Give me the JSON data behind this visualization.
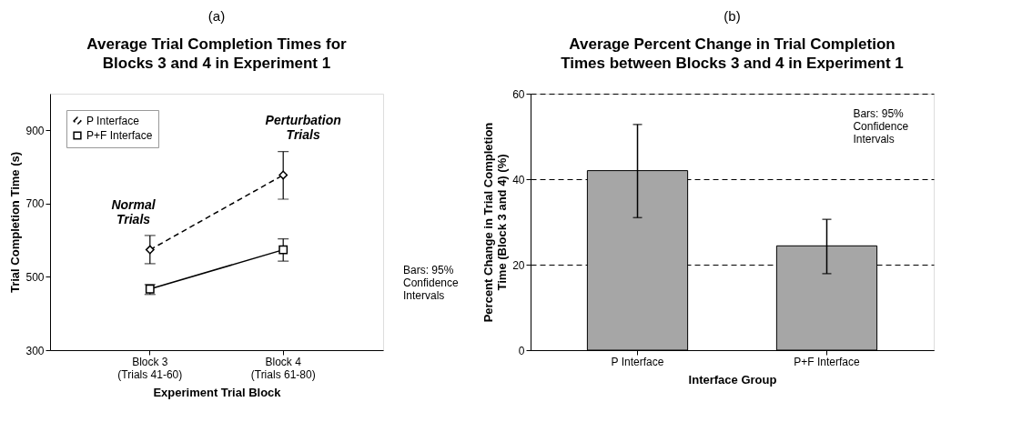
{
  "chart_data": [
    {
      "type": "line",
      "title": "Average Trial Completion Times for\nBlocks 3 and 4 in Experiment 1",
      "xlabel": "Experiment Trial Block",
      "ylabel": "Trial Completion Time (s)",
      "categories": [
        "Block 3\n(Trials 41-60)",
        "Block 4\n(Trials 61-80)"
      ],
      "series": [
        {
          "name": "P Interface",
          "color": "#000000",
          "values": [
            574,
            778
          ],
          "errors": [
            [
              536,
              613
            ],
            [
              712,
              842
            ]
          ],
          "marker": "diamond",
          "line_style": "dashed"
        },
        {
          "name": "P+F Interface",
          "color": "#000000",
          "values": [
            467,
            574
          ],
          "errors": [
            [
              452,
              479
            ],
            [
              543,
              604
            ]
          ],
          "marker": "square",
          "line_style": "solid"
        }
      ],
      "ylim": [
        300,
        1000
      ],
      "yticks": [
        300,
        500,
        700,
        900
      ],
      "grid": false,
      "legend": "top left",
      "annotations": [
        "(a)",
        "Normal\nTrials",
        "Perturbation\nTrials",
        "Bars: 95%\nConfidence\nIntervals"
      ]
    },
    {
      "type": "bar",
      "title": "Average Percent Change in Trial Completion\nTimes between Blocks 3 and 4 in Experiment 1",
      "xlabel": "Interface Group",
      "ylabel": "Percent Change in Trial Completion\nTime (Block 3 and 4) (%)",
      "categories": [
        "P Interface",
        "P+F Interface"
      ],
      "values": [
        42,
        24.4
      ],
      "color": "#a6a6a6",
      "errors": [
        [
          31,
          52.8
        ],
        [
          17.9,
          30.6
        ]
      ],
      "ylim": [
        0,
        60
      ],
      "yticks": [
        0,
        20,
        40,
        60
      ],
      "grid": "y",
      "annotations": [
        "(b)",
        "Bars: 95%\nConfidence\nIntervals"
      ]
    }
  ]
}
